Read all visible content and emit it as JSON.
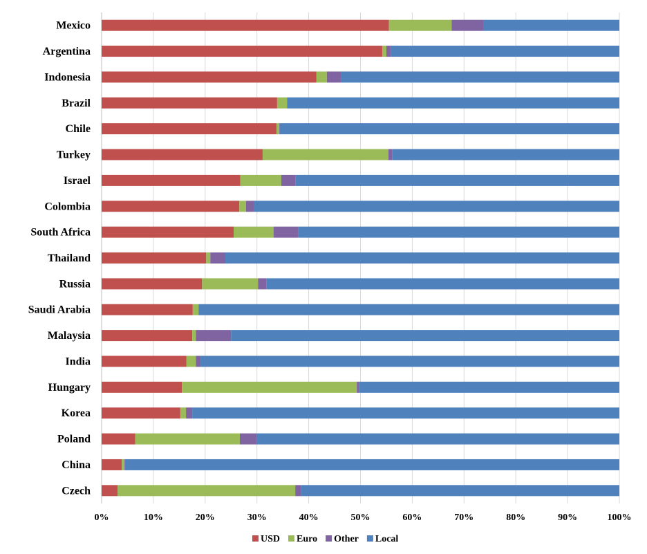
{
  "chart_data": {
    "type": "bar",
    "orientation": "horizontal",
    "stacked": "percent",
    "title": "",
    "xlabel": "",
    "ylabel": "",
    "xlim": [
      0,
      100
    ],
    "x_ticks": [
      "0%",
      "10%",
      "20%",
      "30%",
      "40%",
      "50%",
      "60%",
      "70%",
      "80%",
      "90%",
      "100%"
    ],
    "grid": "vertical",
    "legend": "bottom",
    "categories": [
      "Mexico",
      "Argentina",
      "Indonesia",
      "Brazil",
      "Chile",
      "Turkey",
      "Israel",
      "Colombia",
      "South Africa",
      "Thailand",
      "Russia",
      "Saudi Arabia",
      "Malaysia",
      "India",
      "Hungary",
      "Korea",
      "Poland",
      "China",
      "Czech"
    ],
    "series": [
      {
        "name": "USD",
        "color": "#C0504D",
        "values": [
          55.5,
          54.2,
          41.5,
          33.9,
          33.8,
          31.1,
          26.8,
          26.6,
          25.5,
          20.2,
          19.4,
          17.6,
          17.5,
          16.4,
          15.5,
          15.2,
          6.5,
          3.9,
          3.1
        ]
      },
      {
        "name": "Euro",
        "color": "#9BBB59",
        "values": [
          12.1,
          0.8,
          2.0,
          1.9,
          0.5,
          24.3,
          7.9,
          1.3,
          7.7,
          0.8,
          10.8,
          1.1,
          0.7,
          1.8,
          33.8,
          1.1,
          20.2,
          0.5,
          34.3
        ]
      },
      {
        "name": "Other",
        "color": "#8064A2",
        "values": [
          6.1,
          0.9,
          2.7,
          0.1,
          0.1,
          0.7,
          2.7,
          1.6,
          4.8,
          2.9,
          1.6,
          0.1,
          6.8,
          0.9,
          0.4,
          1.2,
          3.2,
          0.1,
          1.1
        ]
      },
      {
        "name": "Local",
        "color": "#4F81BD",
        "values": [
          26.3,
          44.1,
          53.8,
          64.1,
          65.6,
          43.9,
          62.6,
          70.5,
          62.0,
          76.1,
          68.2,
          81.2,
          75.0,
          80.9,
          50.3,
          82.5,
          70.1,
          95.5,
          61.5
        ]
      }
    ]
  }
}
